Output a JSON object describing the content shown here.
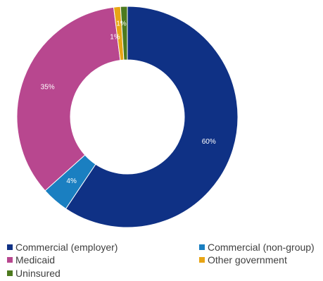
{
  "chart_data": {
    "type": "pie",
    "title": "",
    "donut": true,
    "legend_position": "bottom",
    "slices": [
      {
        "label": "Commercial (employer)",
        "value": 60,
        "display": "60%",
        "color": "#0f3185"
      },
      {
        "label": "Commercial (non-group)",
        "value": 4,
        "display": "4%",
        "color": "#1a7fc1"
      },
      {
        "label": "Medicaid",
        "value": 35,
        "display": "35%",
        "color": "#b8478f"
      },
      {
        "label": "Other government",
        "value": 1,
        "display": "1%",
        "color": "#e8a515"
      },
      {
        "label": "Uninsured",
        "value": 1,
        "display": "1%",
        "color": "#4d7a1e"
      }
    ]
  },
  "legend": [
    {
      "label": "Commercial (employer)",
      "color": "#0f3185"
    },
    {
      "label": "Commercial (non-group)",
      "color": "#1a7fc1"
    },
    {
      "label": "Medicaid",
      "color": "#b8478f"
    },
    {
      "label": "Other government",
      "color": "#e8a515"
    },
    {
      "label": "Uninsured",
      "color": "#4d7a1e"
    }
  ]
}
